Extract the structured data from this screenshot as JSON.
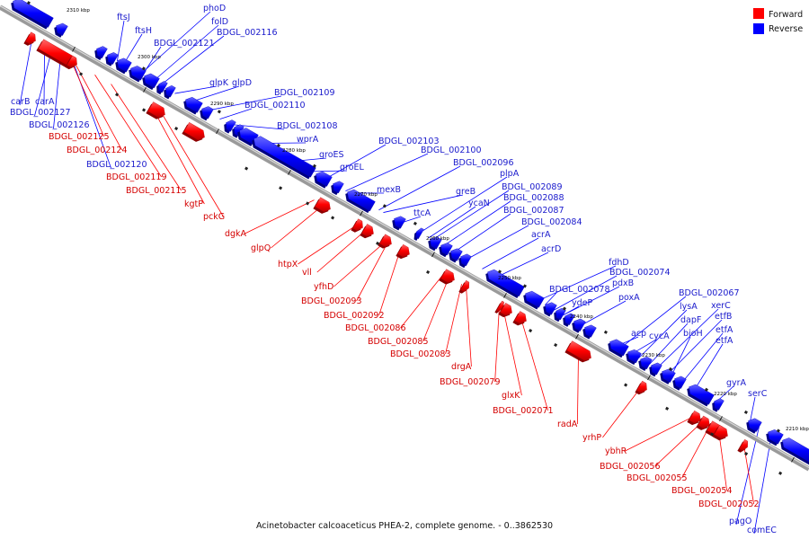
{
  "caption": "Acinetobacter calcoaceticus PHEA-2, complete genome. - 0..3862530",
  "colors": {
    "forward": "#ff0000",
    "reverse": "#0000ff",
    "backbone": "#8a8a8a"
  },
  "legend": [
    {
      "key": "forward",
      "label": "Forward"
    },
    {
      "key": "reverse",
      "label": "Reverse"
    }
  ],
  "ticks": [
    "2310 kbp",
    "2300 kbp",
    "2290 kbp",
    "2280 kbp",
    "2270 kbp",
    "2260 kbp",
    "2250 kbp",
    "2240 kbp",
    "2230 kbp",
    "2220 kbp",
    "2210 kbp"
  ],
  "genes_reverse": [
    "ftsJ",
    "ftsH",
    "phoD",
    "folD",
    "BDGL_002121",
    "BDGL_002116",
    "glpK",
    "glpD",
    "BDGL_002109",
    "BDGL_002110",
    "BDGL_002108",
    "wprA",
    "groES",
    "groEL",
    "BDGL_002103",
    "BDGL_002100",
    "BDGL_002096",
    "mexB",
    "greB",
    "plpA",
    "BDGL_002089",
    "ycaN",
    "BDGL_002088",
    "ttcA",
    "BDGL_002087",
    "BDGL_002084",
    "acrA",
    "acrD",
    "fdhD",
    "BDGL_002074",
    "BDGL_002078",
    "pdxB",
    "ydeP",
    "poxA",
    "BDGL_002067",
    "lysA",
    "dapF",
    "xerC",
    "etfB",
    "acp",
    "cycA",
    "bioH",
    "etfA",
    "etfA",
    "gyrA",
    "serC",
    "pagO",
    "comEC",
    "carB",
    "carA",
    "BDGL_002127",
    "BDGL_002126",
    "BDGL_002120"
  ],
  "genes_forward": [
    "BDGL_002125",
    "BDGL_002124",
    "BDGL_002119",
    "BDGL_002115",
    "kgtP",
    "pckG",
    "dgkA",
    "glpQ",
    "htpX",
    "vll",
    "yfhD",
    "BDGL_002093",
    "BDGL_002092",
    "BDGL_002086",
    "BDGL_002085",
    "BDGL_002083",
    "drgA",
    "BDGL_002079",
    "glxK",
    "BDGL_002071",
    "radA",
    "yrhP",
    "ybhR",
    "BDGL_002056",
    "BDGL_002055",
    "BDGL_002054",
    "BDGL_002052"
  ]
}
